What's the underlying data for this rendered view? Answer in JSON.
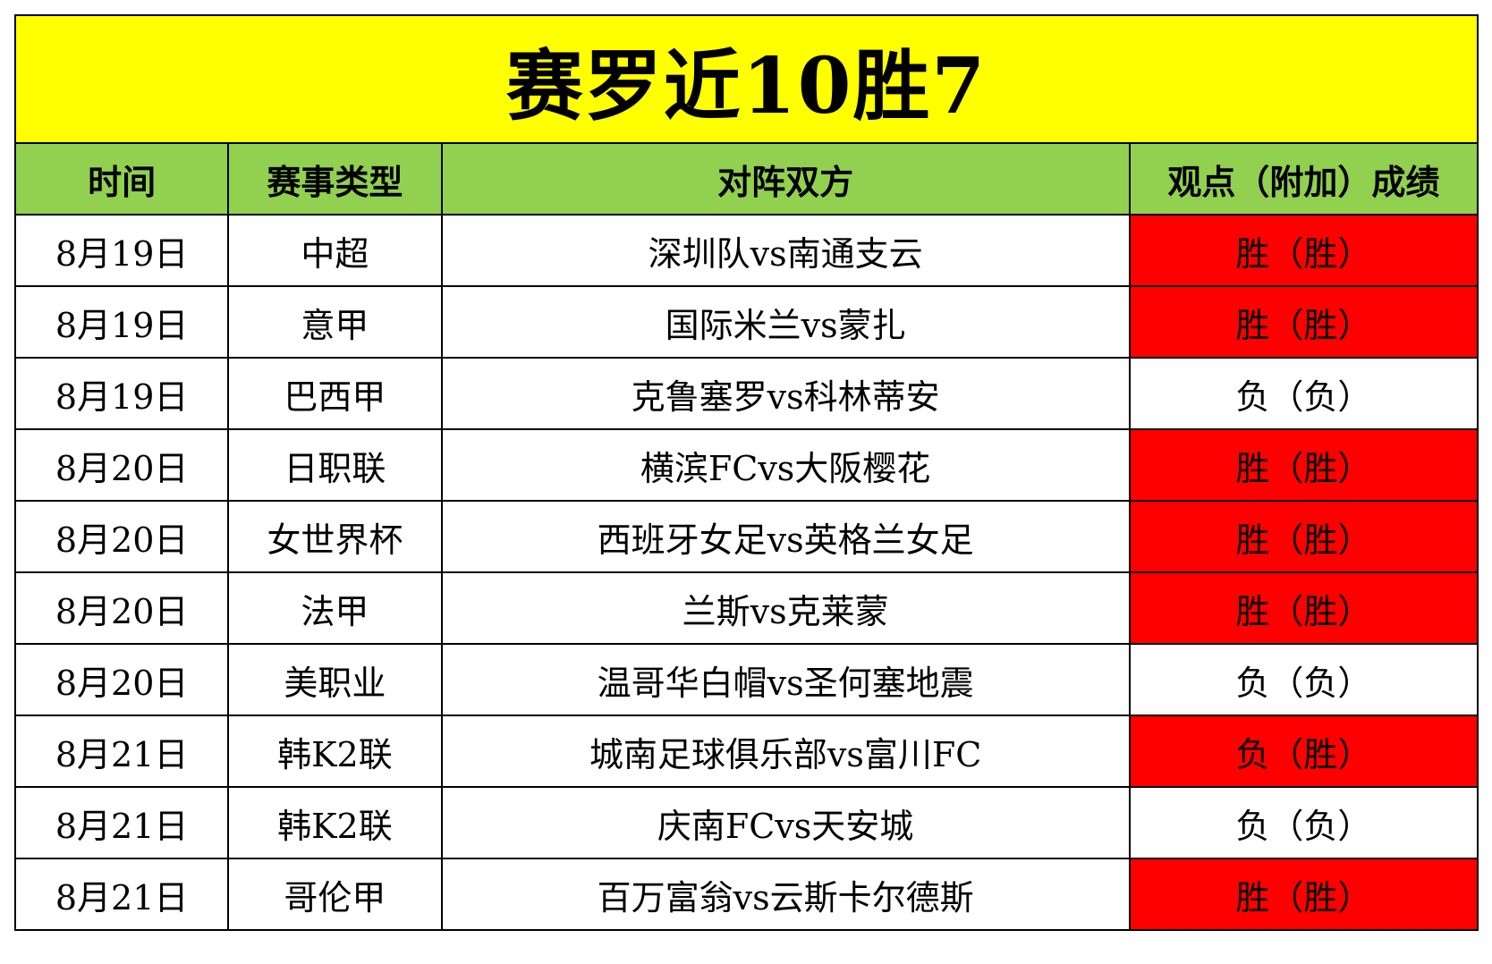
{
  "title": "赛罗近10胜7",
  "colors": {
    "title_bg": "#ffff00",
    "header_bg": "#92d050",
    "highlight_bg": "#ff0000",
    "border": "#000000"
  },
  "headers": [
    "时间",
    "赛事类型",
    "对阵双方",
    "观点（附加）成绩"
  ],
  "rows": [
    {
      "date": "8月19日",
      "league": "中超",
      "match": "深圳队vs南通支云",
      "result": "胜（胜）",
      "highlight": true
    },
    {
      "date": "8月19日",
      "league": "意甲",
      "match": "国际米兰vs蒙扎",
      "result": "胜（胜）",
      "highlight": true
    },
    {
      "date": "8月19日",
      "league": "巴西甲",
      "match": "克鲁塞罗vs科林蒂安",
      "result": "负（负）",
      "highlight": false
    },
    {
      "date": "8月20日",
      "league": "日职联",
      "match": "横滨FCvs大阪樱花",
      "result": "胜（胜）",
      "highlight": true
    },
    {
      "date": "8月20日",
      "league": "女世界杯",
      "match": "西班牙女足vs英格兰女足",
      "result": "胜（胜）",
      "highlight": true
    },
    {
      "date": "8月20日",
      "league": "法甲",
      "match": "兰斯vs克莱蒙",
      "result": "胜（胜）",
      "highlight": true
    },
    {
      "date": "8月20日",
      "league": "美职业",
      "match": "温哥华白帽vs圣何塞地震",
      "result": "负（负）",
      "highlight": false
    },
    {
      "date": "8月21日",
      "league": "韩K2联",
      "match": "城南足球俱乐部vs富川FC",
      "result": "负（胜）",
      "highlight": true
    },
    {
      "date": "8月21日",
      "league": "韩K2联",
      "match": "庆南FCvs天安城",
      "result": "负（负）",
      "highlight": false
    },
    {
      "date": "8月21日",
      "league": "哥伦甲",
      "match": "百万富翁vs云斯卡尔德斯",
      "result": "胜（胜）",
      "highlight": true
    }
  ]
}
